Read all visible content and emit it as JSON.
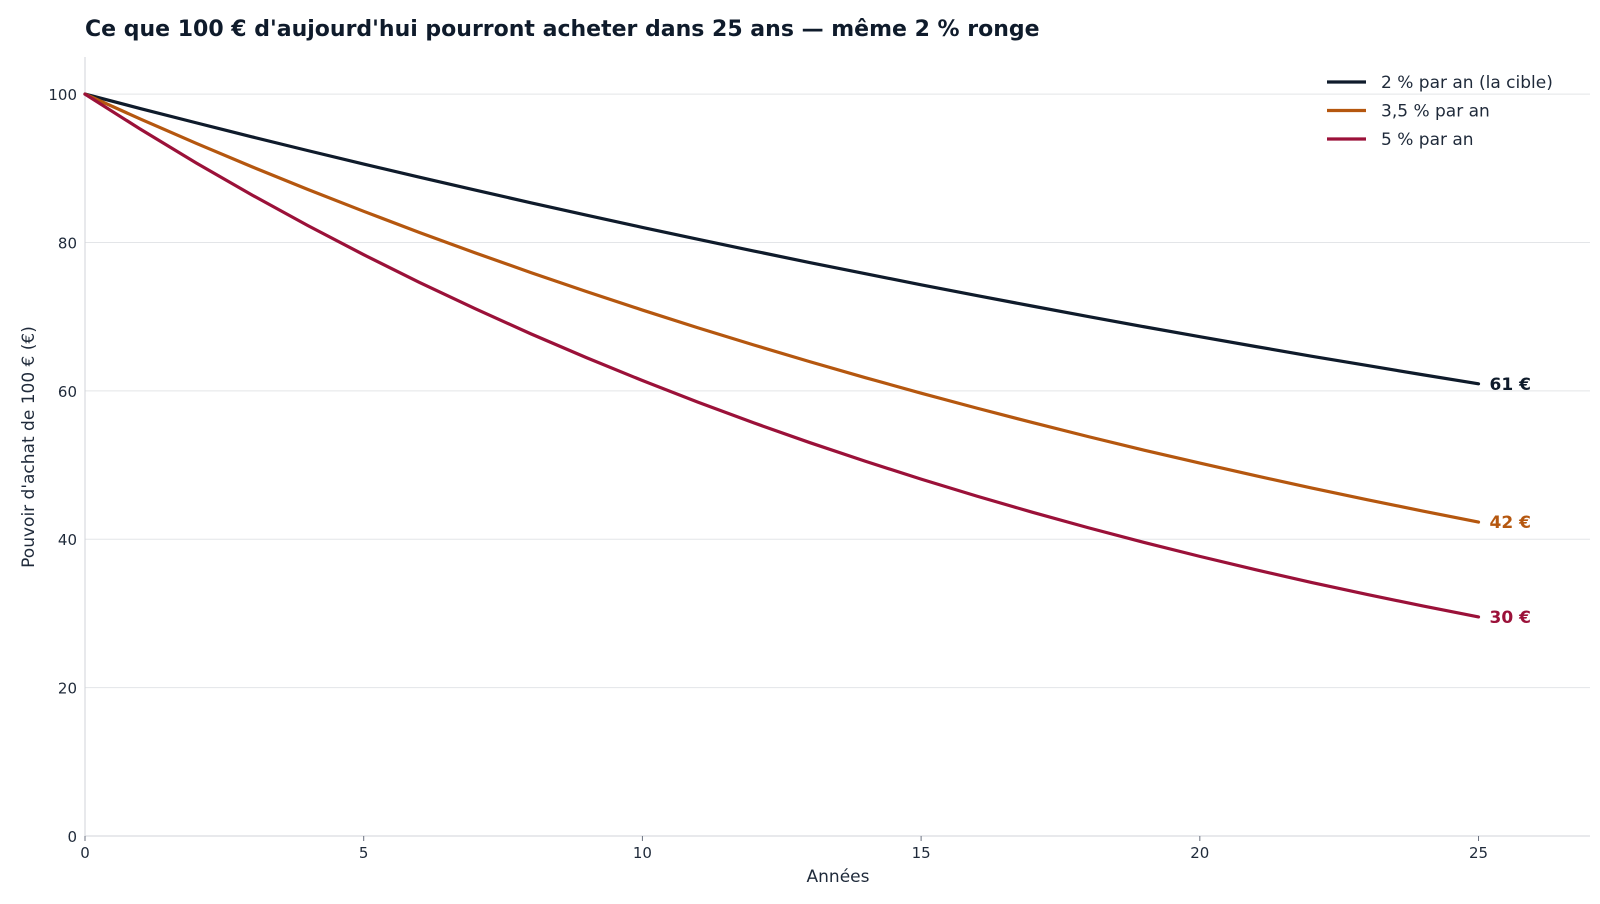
{
  "chart_data": {
    "type": "line",
    "title": "Ce que 100 € d'aujourd'hui pourront acheter dans 25 ans — même 2 % ronge",
    "xlabel": "Années",
    "ylabel": "Pouvoir d'achat de 100 € (€)",
    "xlim": [
      0,
      27
    ],
    "ylim": [
      0,
      105
    ],
    "xticks": [
      0,
      5,
      10,
      15,
      20,
      25
    ],
    "yticks": [
      0,
      20,
      40,
      60,
      80,
      100
    ],
    "grid": "horizontal",
    "legend_position": "top-right",
    "x": [
      0,
      1,
      2,
      3,
      4,
      5,
      6,
      7,
      8,
      9,
      10,
      11,
      12,
      13,
      14,
      15,
      16,
      17,
      18,
      19,
      20,
      21,
      22,
      23,
      24,
      25
    ],
    "series": [
      {
        "name": "2 % par an (la cible)",
        "color": "#0f1b2b",
        "end_label": "61 €",
        "values": [
          100.0,
          98.04,
          96.12,
          94.23,
          92.38,
          90.57,
          88.8,
          87.06,
          85.35,
          83.68,
          82.03,
          80.43,
          78.85,
          77.3,
          75.79,
          74.3,
          72.84,
          71.42,
          70.02,
          68.64,
          67.3,
          65.98,
          64.68,
          63.42,
          62.17,
          60.95
        ]
      },
      {
        "name": "3,5 % par an",
        "color": "#b5570f",
        "end_label": "42 €",
        "values": [
          100.0,
          96.62,
          93.35,
          90.19,
          87.14,
          84.2,
          81.35,
          78.6,
          75.94,
          73.37,
          70.89,
          68.49,
          66.18,
          63.94,
          61.78,
          59.69,
          57.67,
          55.72,
          53.83,
          52.01,
          50.26,
          48.56,
          46.91,
          45.33,
          43.8,
          42.31
        ]
      },
      {
        "name": "5 % par an",
        "color": "#9b1139",
        "end_label": "30 €",
        "values": [
          100.0,
          95.24,
          90.7,
          86.38,
          82.27,
          78.35,
          74.62,
          71.07,
          67.68,
          64.46,
          61.39,
          58.47,
          55.68,
          53.03,
          50.51,
          48.1,
          45.81,
          43.63,
          41.55,
          39.57,
          37.69,
          35.89,
          34.18,
          32.56,
          31.01,
          29.53
        ]
      }
    ]
  }
}
